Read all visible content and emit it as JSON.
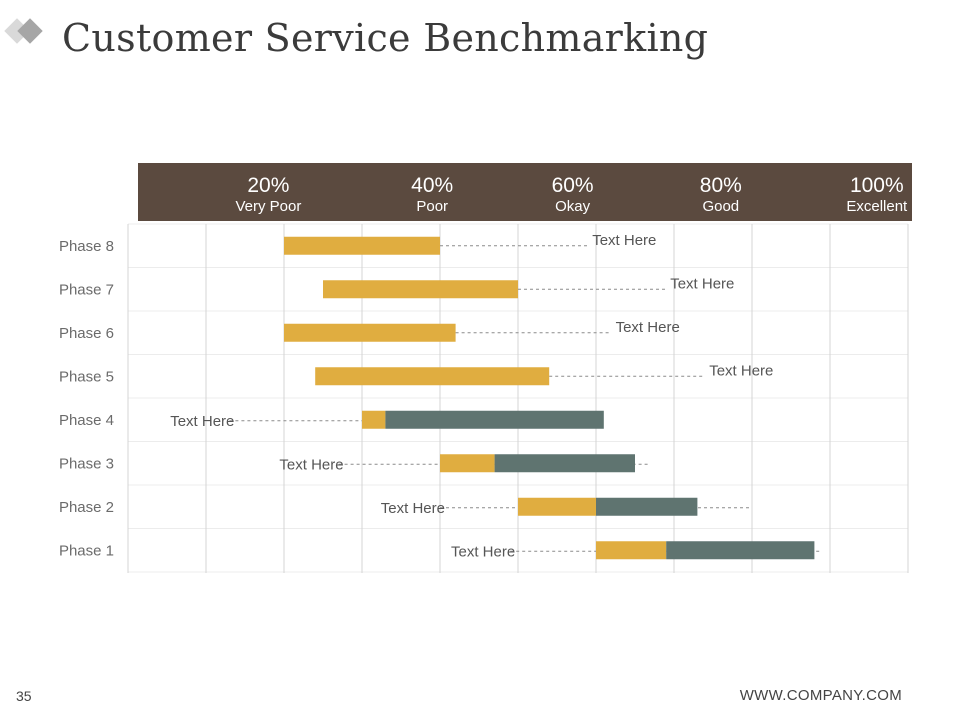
{
  "slide": {
    "title": "Customer Service Benchmarking",
    "page_number": "35",
    "website": "WWW.COMPANY.COM"
  },
  "colors": {
    "accent": "#e0ad40",
    "secondary": "#5f7470",
    "header": "#5b4a3f",
    "grid": "#d4d4d4",
    "logo_light": "#d9d9d9",
    "logo_dark": "#a6a6a6"
  },
  "chart_data": {
    "type": "bar",
    "orientation": "horizontal",
    "stacked": true,
    "header": [
      {
        "value": "20%",
        "label": "Very Poor",
        "x": 20
      },
      {
        "value": "40%",
        "label": "Poor",
        "x": 41
      },
      {
        "value": "60%",
        "label": "Okay",
        "x": 59
      },
      {
        "value": "80%",
        "label": "Good",
        "x": 78
      },
      {
        "value": "100%",
        "label": "Excellent",
        "x": 98
      }
    ],
    "xlim": [
      2,
      102
    ],
    "grid": true,
    "phases": [
      {
        "name": "Phase 8",
        "start": 22,
        "segments": [
          {
            "series": "accent",
            "length": 20
          }
        ],
        "note": "Text Here",
        "note_side": "right",
        "leader_from": 42,
        "leader_to": 61
      },
      {
        "name": "Phase 7",
        "start": 27,
        "segments": [
          {
            "series": "accent",
            "length": 25
          }
        ],
        "note": "Text Here",
        "note_side": "right",
        "leader_from": 32,
        "leader_to": 71
      },
      {
        "name": "Phase 6",
        "start": 22,
        "segments": [
          {
            "series": "accent",
            "length": 22
          }
        ],
        "note": "Text Here",
        "note_side": "right",
        "leader_from": 24,
        "leader_to": 64
      },
      {
        "name": "Phase 5",
        "start": 26,
        "segments": [
          {
            "series": "accent",
            "length": 30
          }
        ],
        "note": "Text Here",
        "note_side": "right",
        "leader_from": 36,
        "leader_to": 76
      },
      {
        "name": "Phase 4",
        "start": 32,
        "segments": [
          {
            "series": "accent",
            "length": 3
          },
          {
            "series": "secondary",
            "length": 28
          }
        ],
        "note": "Text Here",
        "note_side": "left",
        "leader_from": 15,
        "leader_to": 53
      },
      {
        "name": "Phase 3",
        "start": 42,
        "segments": [
          {
            "series": "accent",
            "length": 7
          },
          {
            "series": "secondary",
            "length": 18
          }
        ],
        "note": "Text Here",
        "note_side": "left",
        "leader_from": 29,
        "leader_to": 69
      },
      {
        "name": "Phase 2",
        "start": 52,
        "segments": [
          {
            "series": "accent",
            "length": 10
          },
          {
            "series": "secondary",
            "length": 13
          }
        ],
        "note": "Text Here",
        "note_side": "left",
        "leader_from": 42,
        "leader_to": 82
      },
      {
        "name": "Phase 1",
        "start": 62,
        "segments": [
          {
            "series": "accent",
            "length": 9
          },
          {
            "series": "secondary",
            "length": 19
          }
        ],
        "note": "Text Here",
        "note_side": "left",
        "leader_from": 51,
        "leader_to": 91
      }
    ]
  }
}
